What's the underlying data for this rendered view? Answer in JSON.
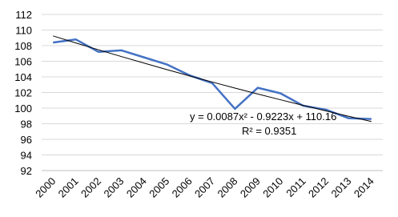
{
  "chart_data": {
    "type": "line",
    "categories": [
      "2000",
      "2001",
      "2002",
      "2003",
      "2004",
      "2005",
      "2006",
      "2007",
      "2008",
      "2009",
      "2010",
      "2011",
      "2012",
      "2013",
      "2014"
    ],
    "series": [
      {
        "color": "#4472c4",
        "values": [
          108.4,
          108.8,
          107.2,
          107.4,
          106.5,
          105.6,
          104.2,
          103.2,
          99.9,
          102.6,
          101.9,
          100.3,
          99.8,
          98.7,
          98.6
        ]
      }
    ],
    "trendline": {
      "color": "#000000",
      "values": [
        109.25,
        108.35,
        107.47,
        106.61,
        105.77,
        104.94,
        104.13,
        103.34,
        102.56,
        101.81,
        101.07,
        100.35,
        99.64,
        98.95,
        98.28
      ],
      "equation": "y = 0.0087x² - 0.9223x + 110.16",
      "r_squared": "R² = 0.9351"
    },
    "ylim": [
      92,
      112
    ],
    "yticks": [
      92,
      94,
      96,
      98,
      100,
      102,
      104,
      106,
      108,
      110,
      112
    ],
    "grid": true
  }
}
